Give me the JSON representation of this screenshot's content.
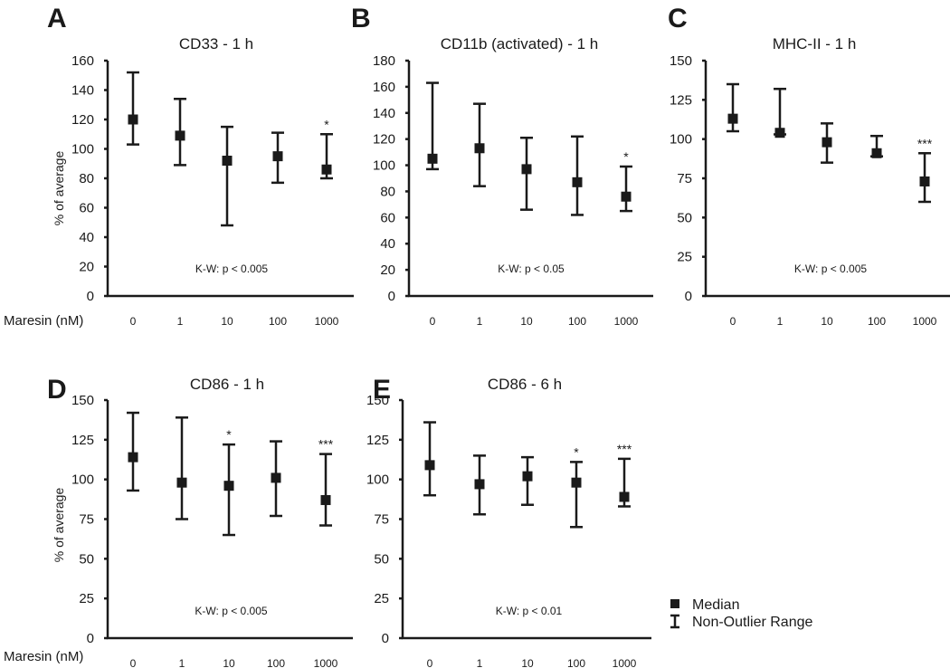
{
  "row_label": "Maresin (nM)",
  "y_axis_title": "% of average",
  "legend": {
    "median_label": "Median",
    "range_label": "Non-Outlier Range"
  },
  "chart_data": [
    {
      "type": "scatter",
      "letter": "A",
      "title": "CD33 - 1 h",
      "categories": [
        "0",
        "1",
        "10",
        "100",
        "1000"
      ],
      "ylim": [
        0,
        160
      ],
      "yticks": [
        0,
        20,
        40,
        60,
        80,
        100,
        120,
        140,
        160
      ],
      "median": [
        120,
        109,
        92,
        95,
        86
      ],
      "low": [
        103,
        89,
        48,
        77,
        80
      ],
      "high": [
        152,
        134,
        115,
        111,
        110
      ],
      "significance": [
        "",
        "",
        "",
        "",
        "*"
      ],
      "annotation": "K-W: p < 0.005",
      "ylabel": "% of average",
      "xlabel": "Maresin (nM)"
    },
    {
      "type": "scatter",
      "letter": "B",
      "title": "CD11b (activated) - 1 h",
      "categories": [
        "0",
        "1",
        "10",
        "100",
        "1000"
      ],
      "ylim": [
        0,
        180
      ],
      "yticks": [
        0,
        20,
        40,
        60,
        80,
        100,
        120,
        140,
        160,
        180
      ],
      "median": [
        105,
        113,
        97,
        87,
        76
      ],
      "low": [
        97,
        84,
        66,
        62,
        65
      ],
      "high": [
        163,
        147,
        121,
        122,
        99
      ],
      "significance": [
        "",
        "",
        "",
        "",
        "*"
      ],
      "annotation": "K-W: p < 0.05",
      "ylabel": "",
      "xlabel": ""
    },
    {
      "type": "scatter",
      "letter": "C",
      "title": "MHC-II - 1 h",
      "categories": [
        "0",
        "1",
        "10",
        "100",
        "1000"
      ],
      "ylim": [
        0,
        150
      ],
      "yticks": [
        0,
        25,
        50,
        75,
        100,
        125,
        150
      ],
      "median": [
        113,
        104,
        98,
        91,
        73
      ],
      "low": [
        105,
        103,
        85,
        89,
        60
      ],
      "high": [
        135,
        132,
        110,
        102,
        91
      ],
      "significance": [
        "",
        "",
        "",
        "",
        "***"
      ],
      "annotation": "K-W: p < 0.005",
      "ylabel": "",
      "xlabel": ""
    },
    {
      "type": "scatter",
      "letter": "D",
      "title": "CD86 - 1 h",
      "categories": [
        "0",
        "1",
        "10",
        "100",
        "1000"
      ],
      "ylim": [
        0,
        150
      ],
      "yticks": [
        0,
        25,
        50,
        75,
        100,
        125,
        150
      ],
      "median": [
        114,
        98,
        96,
        101,
        87
      ],
      "low": [
        93,
        75,
        65,
        77,
        71
      ],
      "high": [
        142,
        139,
        122,
        124,
        116
      ],
      "significance": [
        "",
        "",
        "*",
        "",
        "***"
      ],
      "annotation": "K-W: p < 0.005",
      "ylabel": "% of average",
      "xlabel": "Maresin (nM)"
    },
    {
      "type": "scatter",
      "letter": "E",
      "title": "CD86 - 6 h",
      "categories": [
        "0",
        "1",
        "10",
        "100",
        "1000"
      ],
      "ylim": [
        0,
        150
      ],
      "yticks": [
        0,
        25,
        50,
        75,
        100,
        125,
        150
      ],
      "median": [
        109,
        97,
        102,
        98,
        89
      ],
      "low": [
        90,
        78,
        84,
        70,
        83
      ],
      "high": [
        136,
        115,
        114,
        111,
        113
      ],
      "significance": [
        "",
        "",
        "",
        "*",
        "***"
      ],
      "annotation": "K-W: p < 0.01",
      "ylabel": "",
      "xlabel": ""
    }
  ]
}
